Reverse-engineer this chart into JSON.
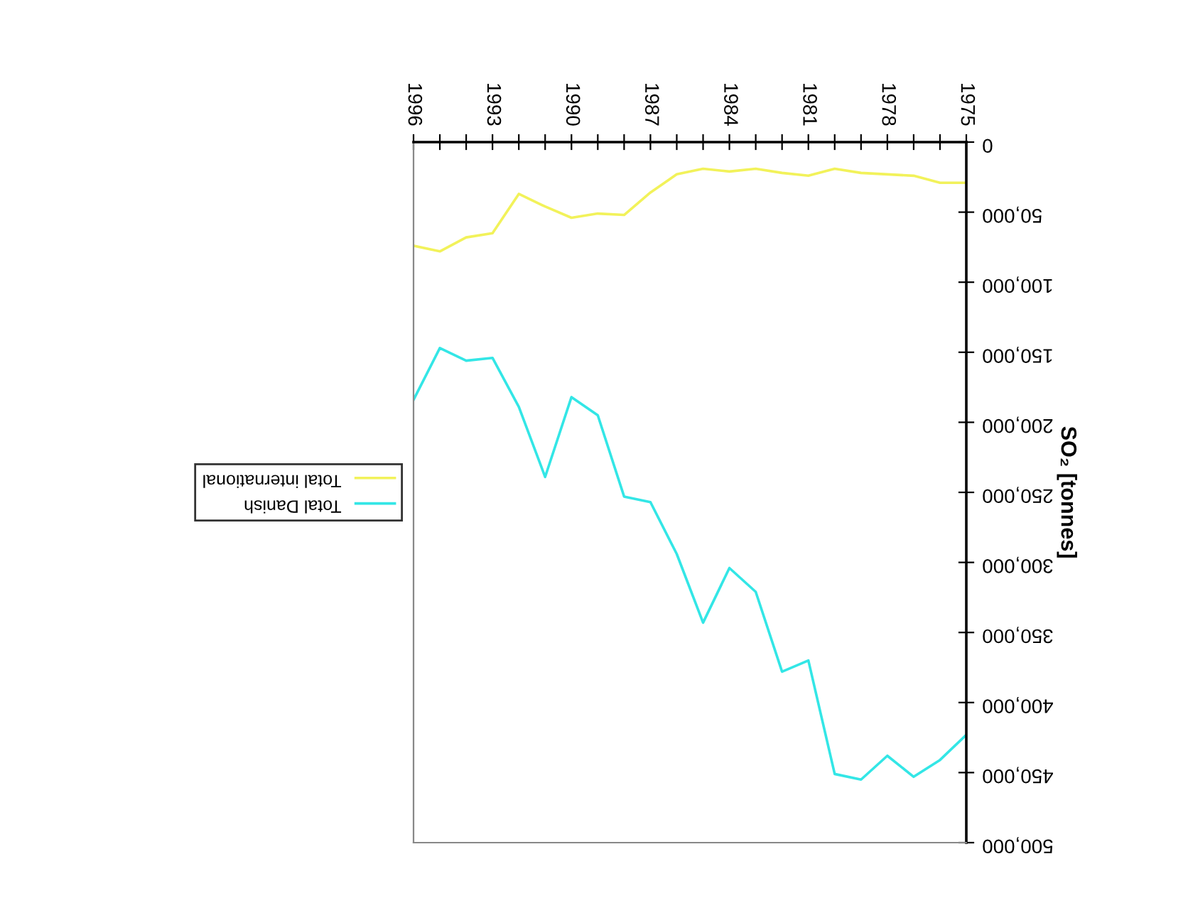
{
  "chart_data": {
    "type": "line",
    "ylabel": "SO₂ [tonnes]",
    "x": [
      1975,
      1976,
      1977,
      1978,
      1979,
      1980,
      1981,
      1982,
      1983,
      1984,
      1985,
      1986,
      1987,
      1988,
      1989,
      1990,
      1991,
      1992,
      1993,
      1994,
      1995,
      1996
    ],
    "series": [
      {
        "name": "Total Danish",
        "color": "#33e6e6",
        "values": [
          423000,
          441000,
          453000,
          438000,
          455000,
          451000,
          370000,
          378000,
          321000,
          304000,
          343000,
          294000,
          257000,
          253000,
          195000,
          182000,
          239000,
          189000,
          154000,
          156000,
          147000,
          184000
        ]
      },
      {
        "name": "Total international",
        "color": "#f2f25a",
        "values": [
          29000,
          29000,
          24000,
          23000,
          22000,
          19000,
          24000,
          22000,
          19000,
          21000,
          19000,
          23000,
          36000,
          52000,
          51000,
          54000,
          46000,
          37000,
          65000,
          68000,
          78000,
          74000
        ]
      }
    ],
    "xlim": [
      1996,
      1975
    ],
    "xticks": [
      1975,
      {
        "value": 1976,
        "label": null
      },
      {
        "value": 1977,
        "label": null
      },
      1978,
      {
        "value": 1979,
        "label": null
      },
      {
        "value": 1980,
        "label": null
      },
      1981,
      {
        "value": 1982,
        "label": null
      },
      {
        "value": 1983,
        "label": null
      },
      1984,
      {
        "value": 1985,
        "label": null
      },
      {
        "value": 1986,
        "label": null
      },
      1987,
      {
        "value": 1988,
        "label": null
      },
      {
        "value": 1989,
        "label": null
      },
      1990,
      {
        "value": 1991,
        "label": null
      },
      {
        "value": 1992,
        "label": null
      },
      1993,
      {
        "value": 1994,
        "label": null
      },
      {
        "value": 1995,
        "label": null
      },
      1996
    ],
    "ylim": [
      500000,
      0
    ],
    "yticks": [
      0,
      {
        "value": 50000,
        "label": "50,000"
      },
      {
        "value": 100000,
        "label": "100,000"
      },
      {
        "value": 150000,
        "label": "150,000"
      },
      {
        "value": 200000,
        "label": "200,000"
      },
      {
        "value": 250000,
        "label": "250,000"
      },
      {
        "value": 300000,
        "label": "300,000"
      },
      {
        "value": 350000,
        "label": "350,000"
      },
      {
        "value": 400000,
        "label": "400,000"
      },
      {
        "value": 450000,
        "label": "450,000"
      },
      {
        "value": 500000,
        "label": "500,000"
      }
    ],
    "legend": "left",
    "grid": false,
    "marker": "none",
    "line_style": "solid"
  }
}
